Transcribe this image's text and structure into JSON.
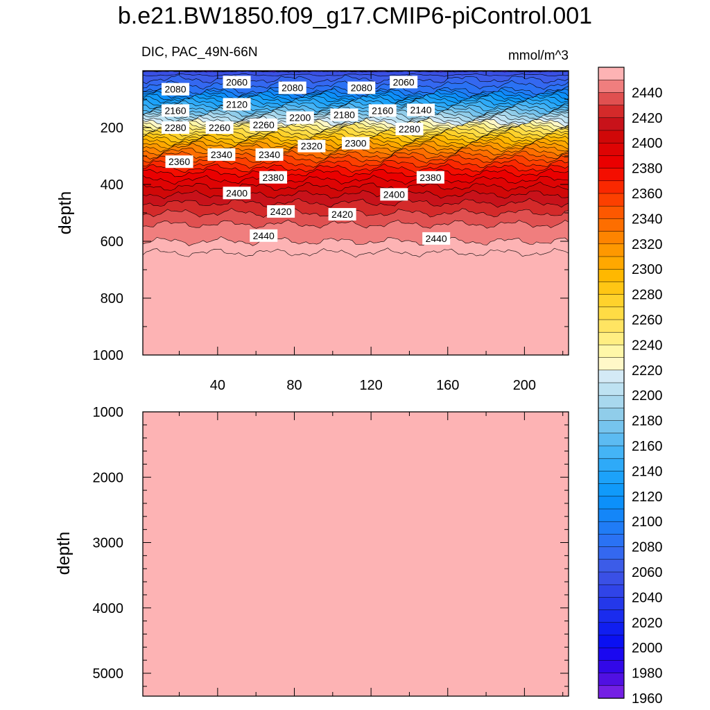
{
  "title": "b.e21.BW1850.f09_g17.CMIP6-piControl.001",
  "colors": {
    "upper_deep": "#fdb3b4",
    "background": "#ffffff",
    "line": "#000000"
  },
  "chart_data": [
    {
      "type": "heatmap",
      "panel": "upper",
      "subtitle_left": "DIC, PAC_49N-66N",
      "subtitle_right": "mmol/m^3",
      "xlabel": "",
      "ylabel": "depth",
      "xlim": [
        1,
        223
      ],
      "ylim": [
        1000,
        0
      ],
      "x_ticks": [
        "40",
        "80",
        "120",
        "160",
        "200"
      ],
      "y_ticks": [
        "200",
        "400",
        "600",
        "800",
        "1000"
      ],
      "contour_levels": [
        1960,
        1970,
        1980,
        1990,
        2000,
        2010,
        2020,
        2030,
        2040,
        2050,
        2060,
        2070,
        2080,
        2090,
        2100,
        2110,
        2120,
        2130,
        2140,
        2150,
        2160,
        2170,
        2180,
        2190,
        2200,
        2210,
        2220,
        2230,
        2240,
        2250,
        2260,
        2270,
        2280,
        2290,
        2300,
        2310,
        2320,
        2330,
        2340,
        2350,
        2360,
        2370,
        2380,
        2390,
        2400,
        2410,
        2420,
        2430,
        2440,
        2450
      ],
      "level_depth_profile": {
        "depth": [
          0,
          30,
          70,
          100,
          140,
          175,
          200,
          230,
          270,
          310,
          360,
          420,
          480,
          540,
          600,
          640
        ],
        "value": [
          2040,
          2060,
          2080,
          2120,
          2160,
          2200,
          2240,
          2270,
          2310,
          2340,
          2370,
          2395,
          2415,
          2430,
          2440,
          2450
        ]
      },
      "contour_labels": [
        {
          "value": "2080",
          "x": 18,
          "depth": 65
        },
        {
          "value": "2060",
          "x": 50,
          "depth": 40
        },
        {
          "value": "2080",
          "x": 79,
          "depth": 60
        },
        {
          "value": "2080",
          "x": 115,
          "depth": 60
        },
        {
          "value": "2060",
          "x": 137,
          "depth": 40
        },
        {
          "value": "2160",
          "x": 18,
          "depth": 140
        },
        {
          "value": "2120",
          "x": 50,
          "depth": 118
        },
        {
          "value": "2200",
          "x": 83,
          "depth": 165
        },
        {
          "value": "2180",
          "x": 106,
          "depth": 155
        },
        {
          "value": "2160",
          "x": 126,
          "depth": 140
        },
        {
          "value": "2140",
          "x": 146,
          "depth": 138
        },
        {
          "value": "2280",
          "x": 18,
          "depth": 200
        },
        {
          "value": "2260",
          "x": 41,
          "depth": 200
        },
        {
          "value": "2260",
          "x": 64,
          "depth": 190
        },
        {
          "value": "2280",
          "x": 140,
          "depth": 205
        },
        {
          "value": "2360",
          "x": 20,
          "depth": 320
        },
        {
          "value": "2340",
          "x": 42,
          "depth": 295
        },
        {
          "value": "2340",
          "x": 67,
          "depth": 295
        },
        {
          "value": "2320",
          "x": 89,
          "depth": 265
        },
        {
          "value": "2300",
          "x": 112,
          "depth": 255
        },
        {
          "value": "2380",
          "x": 69,
          "depth": 375
        },
        {
          "value": "2400",
          "x": 50,
          "depth": 430
        },
        {
          "value": "2380",
          "x": 151,
          "depth": 375
        },
        {
          "value": "2400",
          "x": 132,
          "depth": 435
        },
        {
          "value": "2420",
          "x": 73,
          "depth": 495
        },
        {
          "value": "2420",
          "x": 105,
          "depth": 505
        },
        {
          "value": "2440",
          "x": 64,
          "depth": 580
        },
        {
          "value": "2440",
          "x": 154,
          "depth": 590
        }
      ]
    },
    {
      "type": "heatmap",
      "panel": "lower",
      "xlabel": "",
      "ylabel": "depth",
      "xlim": [
        1,
        223
      ],
      "ylim": [
        5350,
        1000
      ],
      "x_ticks": [],
      "y_ticks": [
        "1000",
        "2000",
        "3000",
        "4000",
        "5000"
      ],
      "fill_value_range": "> 2450"
    }
  ],
  "colorbar": {
    "tick_labels": [
      "2440",
      "2420",
      "2400",
      "2380",
      "2360",
      "2340",
      "2320",
      "2300",
      "2280",
      "2260",
      "2240",
      "2220",
      "2200",
      "2180",
      "2160",
      "2140",
      "2120",
      "2100",
      "2080",
      "2060",
      "2040",
      "2020",
      "2000",
      "1980",
      "1960"
    ],
    "colors_top_to_bottom": [
      "#fdb3b4",
      "#f07e7e",
      "#e05050",
      "#d42a2a",
      "#c8121a",
      "#d00808",
      "#de0404",
      "#ea0000",
      "#f40e00",
      "#fa2800",
      "#fc4000",
      "#fd5800",
      "#fd6e00",
      "#fe8400",
      "#fe9800",
      "#ffa800",
      "#ffb800",
      "#ffc614",
      "#ffd22c",
      "#ffdc44",
      "#ffe462",
      "#ffee82",
      "#fff7a8",
      "#fff8c8",
      "#d4eaf6",
      "#bee2f2",
      "#a8d8ee",
      "#90cdea",
      "#76c4ee",
      "#5cbbf2",
      "#44b4f6",
      "#2eaaf8",
      "#1ca2fa",
      "#109afa",
      "#0c90fa",
      "#1486f8",
      "#207cf6",
      "#2a72f4",
      "#3468f0",
      "#3c5ce8",
      "#3a50e6",
      "#3044e8",
      "#2438ea",
      "#1a2cee",
      "#101ef0",
      "#0a10f2",
      "#1a08f0",
      "#3208e8",
      "#5010e2",
      "#7420e4"
    ]
  }
}
